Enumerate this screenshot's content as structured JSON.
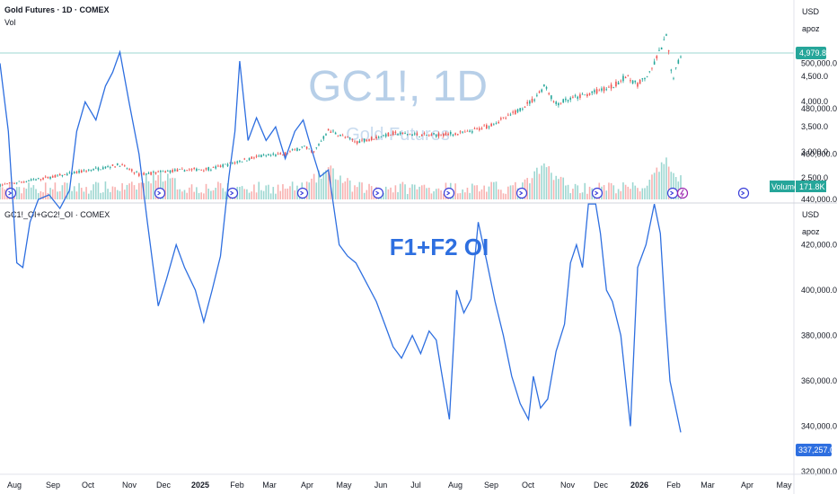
{
  "upper_pane": {
    "title": "Gold Futures · 1D · COMEX",
    "subtitle": "Vol",
    "currency": "USD",
    "scale_mode": "apoz",
    "watermark_symbol": "GC1!, 1D",
    "watermark_name": "Gold Futures",
    "last_price_label": "4,979.8",
    "volume_label": "Volume",
    "volume_value": "171.8K",
    "price_ticks": [
      "4,500.0",
      "4,000.0",
      "3,500.0",
      "3,000.0",
      "2,500.0"
    ],
    "colors": {
      "up": "#26a69a",
      "down": "#ef5350",
      "last_line": "#26a69a"
    }
  },
  "lower_pane": {
    "title": "GC1!_OI+GC2!_OI · COMEX",
    "headline": "F1+F2 OI",
    "currency": "USD",
    "scale_mode": "apoz",
    "last_value_label": "337,257.0",
    "line_color": "#2e6fe0"
  },
  "date_axis": [
    {
      "label": "Aug",
      "bold": false
    },
    {
      "label": "Sep",
      "bold": false
    },
    {
      "label": "Oct",
      "bold": false
    },
    {
      "label": "Nov",
      "bold": false
    },
    {
      "label": "Dec",
      "bold": false
    },
    {
      "label": "2025",
      "bold": true
    },
    {
      "label": "Feb",
      "bold": false
    },
    {
      "label": "Mar",
      "bold": false
    },
    {
      "label": "Apr",
      "bold": false
    },
    {
      "label": "May",
      "bold": false
    },
    {
      "label": "Jun",
      "bold": false
    },
    {
      "label": "Jul",
      "bold": false
    },
    {
      "label": "Aug",
      "bold": false
    },
    {
      "label": "Sep",
      "bold": false
    },
    {
      "label": "Oct",
      "bold": false
    },
    {
      "label": "Nov",
      "bold": false
    },
    {
      "label": "Dec",
      "bold": false
    },
    {
      "label": "2026",
      "bold": true
    },
    {
      "label": "Feb",
      "bold": false
    },
    {
      "label": "Mar",
      "bold": false
    },
    {
      "label": "Apr",
      "bold": false
    },
    {
      "label": "May",
      "bold": false
    }
  ],
  "chart_data": [
    {
      "type": "candlestick",
      "title": "Gold Futures · 1D · COMEX",
      "ylabel": "USD",
      "ylim": [
        2300,
        5350
      ],
      "yticks": [
        2500,
        3000,
        3500,
        4000,
        4500
      ],
      "x_range": [
        "2024-07-22",
        "2026-05-08"
      ],
      "last_value": 4979.8,
      "price_path": [
        [
          "2024-07-22",
          2390
        ],
        [
          "2024-08-15",
          2480
        ],
        [
          "2024-09-15",
          2600
        ],
        [
          "2024-10-30",
          2800
        ],
        [
          "2024-11-15",
          2600
        ],
        [
          "2024-12-15",
          2680
        ],
        [
          "2025-01-15",
          2720
        ],
        [
          "2025-02-20",
          2950
        ],
        [
          "2025-03-15",
          3000
        ],
        [
          "2025-04-01",
          3150
        ],
        [
          "2025-04-10",
          3050
        ],
        [
          "2025-04-22",
          3480
        ],
        [
          "2025-05-15",
          3250
        ],
        [
          "2025-06-15",
          3420
        ],
        [
          "2025-07-15",
          3380
        ],
        [
          "2025-08-15",
          3430
        ],
        [
          "2025-09-01",
          3560
        ],
        [
          "2025-09-20",
          3760
        ],
        [
          "2025-10-10",
          4090
        ],
        [
          "2025-10-20",
          4380
        ],
        [
          "2025-10-28",
          4000
        ],
        [
          "2025-11-10",
          4100
        ],
        [
          "2025-11-25",
          4200
        ],
        [
          "2025-12-15",
          4350
        ],
        [
          "2025-12-26",
          4550
        ],
        [
          "2026-01-05",
          4400
        ],
        [
          "2026-01-15",
          4600
        ],
        [
          "2026-01-29",
          5350
        ],
        [
          "2026-02-03",
          4500
        ],
        [
          "2026-02-10",
          4979.8
        ]
      ],
      "volume": {
        "label": "Volume",
        "last": "171.8K",
        "relative_bursts": [
          [
            "2024-12-01",
            0.55
          ],
          [
            "2025-04-22",
            0.7
          ],
          [
            "2025-10-20",
            0.8
          ],
          [
            "2026-01-29",
            0.9
          ]
        ]
      }
    },
    {
      "type": "line",
      "title": "GC1!_OI+GC2!_OI · COMEX",
      "ylabel": "USD",
      "ylim": [
        320000,
        515000
      ],
      "yticks": [
        320000,
        340000,
        360000,
        380000,
        400000,
        420000,
        440000,
        460000,
        480000,
        500000
      ],
      "last_value": 337257.0,
      "series": [
        {
          "points": [
            [
              "2024-07-22",
              500000
            ],
            [
              "2024-07-29",
              470000
            ],
            [
              "2024-08-05",
              412000
            ],
            [
              "2024-08-10",
              410000
            ],
            [
              "2024-08-16",
              430000
            ],
            [
              "2024-08-23",
              440000
            ],
            [
              "2024-09-01",
              442000
            ],
            [
              "2024-09-10",
              436000
            ],
            [
              "2024-09-18",
              444000
            ],
            [
              "2024-09-24",
              470000
            ],
            [
              "2024-10-01",
              483000
            ],
            [
              "2024-10-10",
              475000
            ],
            [
              "2024-10-18",
              490000
            ],
            [
              "2024-10-24",
              496000
            ],
            [
              "2024-10-30",
              505000
            ],
            [
              "2024-11-07",
              482000
            ],
            [
              "2024-11-15",
              460000
            ],
            [
              "2024-11-22",
              430000
            ],
            [
              "2024-12-01",
              393000
            ],
            [
              "2024-12-08",
              405000
            ],
            [
              "2024-12-16",
              420000
            ],
            [
              "2024-12-23",
              410000
            ],
            [
              "2025-01-01",
              400000
            ],
            [
              "2025-01-08",
              386000
            ],
            [
              "2025-01-15",
              400000
            ],
            [
              "2025-01-22",
              415000
            ],
            [
              "2025-01-29",
              450000
            ],
            [
              "2025-02-03",
              470000
            ],
            [
              "2025-02-07",
              501000
            ],
            [
              "2025-02-14",
              466000
            ],
            [
              "2025-02-21",
              476000
            ],
            [
              "2025-03-01",
              466000
            ],
            [
              "2025-03-09",
              472000
            ],
            [
              "2025-03-17",
              458000
            ],
            [
              "2025-03-25",
              470000
            ],
            [
              "2025-04-01",
              475000
            ],
            [
              "2025-04-08",
              462000
            ],
            [
              "2025-04-15",
              450000
            ],
            [
              "2025-04-22",
              453000
            ],
            [
              "2025-05-01",
              420000
            ],
            [
              "2025-05-08",
              415000
            ],
            [
              "2025-05-15",
              412000
            ],
            [
              "2025-05-22",
              405000
            ],
            [
              "2025-06-01",
              395000
            ],
            [
              "2025-06-08",
              385000
            ],
            [
              "2025-06-15",
              375000
            ],
            [
              "2025-06-22",
              370000
            ],
            [
              "2025-07-01",
              380000
            ],
            [
              "2025-07-08",
              372000
            ],
            [
              "2025-07-15",
              382000
            ],
            [
              "2025-07-21",
              378000
            ],
            [
              "2025-07-25",
              365000
            ],
            [
              "2025-08-01",
              343000
            ],
            [
              "2025-08-07",
              400000
            ],
            [
              "2025-08-13",
              390000
            ],
            [
              "2025-08-19",
              396000
            ],
            [
              "2025-08-25",
              430000
            ],
            [
              "2025-09-01",
              413000
            ],
            [
              "2025-09-08",
              395000
            ],
            [
              "2025-09-15",
              380000
            ],
            [
              "2025-09-22",
              362000
            ],
            [
              "2025-09-29",
              350000
            ],
            [
              "2025-10-06",
              343000
            ],
            [
              "2025-10-10",
              362000
            ],
            [
              "2025-10-16",
              348000
            ],
            [
              "2025-10-22",
              352000
            ],
            [
              "2025-10-29",
              373000
            ],
            [
              "2025-11-05",
              385000
            ],
            [
              "2025-11-10",
              412000
            ],
            [
              "2025-11-15",
              420000
            ],
            [
              "2025-11-20",
              410000
            ],
            [
              "2025-11-25",
              438000
            ],
            [
              "2025-12-01",
              438000
            ],
            [
              "2025-12-05",
              425000
            ],
            [
              "2025-12-10",
              400000
            ],
            [
              "2025-12-15",
              395000
            ],
            [
              "2025-12-22",
              380000
            ],
            [
              "2025-12-30",
              340000
            ],
            [
              "2026-01-05",
              410000
            ],
            [
              "2026-01-12",
              420000
            ],
            [
              "2026-01-19",
              438000
            ],
            [
              "2026-01-24",
              425000
            ],
            [
              "2026-01-28",
              390000
            ],
            [
              "2026-02-01",
              360000
            ],
            [
              "2026-02-05",
              350000
            ],
            [
              "2026-02-10",
              337257
            ]
          ]
        }
      ]
    }
  ]
}
